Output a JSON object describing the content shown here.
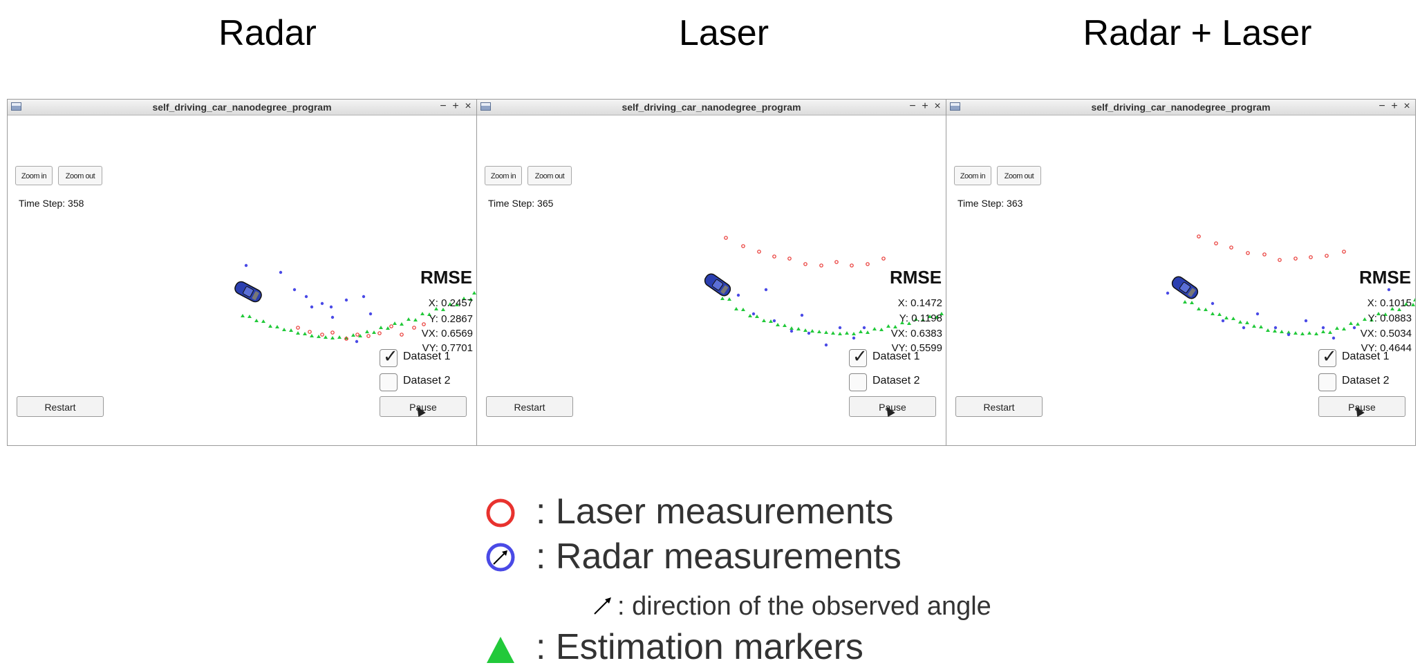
{
  "columns": [
    {
      "title": "Radar",
      "time_step": "Time Step: 358",
      "rmse": {
        "label": "RMSE",
        "x": "X: 0.2457",
        "y": "Y: 0.2867",
        "vx": "VX: 0.6569",
        "vy": "VY: 0.7701"
      }
    },
    {
      "title": "Laser",
      "time_step": "Time Step: 365",
      "rmse": {
        "label": "RMSE",
        "x": "X: 0.1472",
        "y": "Y: 0.1198",
        "vx": "VX: 0.6383",
        "vy": "VY: 0.5599"
      }
    },
    {
      "title": "Radar + Laser",
      "time_step": "Time Step: 363",
      "rmse": {
        "label": "RMSE",
        "x": "X: 0.1015",
        "y": "Y: 0.0883",
        "vx": "VX: 0.5034",
        "vy": "VY: 0.4644"
      }
    }
  ],
  "window": {
    "title": "self_driving_car_nanodegree_program",
    "minimize": "−",
    "maximize": "+",
    "close": "×",
    "zoom_in": "Zoom in",
    "zoom_out": "Zoom out",
    "dataset1": "Dataset 1",
    "dataset2": "Dataset 2",
    "dataset1_checked": true,
    "dataset2_checked": false,
    "restart": "Restart",
    "pause": "Pause",
    "check_glyph": "✓"
  },
  "legend": {
    "laser": ": Laser measurements",
    "radar": ": Radar measurements",
    "arrow": ": direction of the observed angle",
    "estimation": ": Estimation markers"
  },
  "colors": {
    "laser": "#e8322e",
    "radar": "#4a4ae6",
    "estimation": "#22c93a",
    "car": "#2b3fb0"
  },
  "icons": [
    "window-menu-icon",
    "car-icon",
    "check-icon",
    "cursor-icon",
    "arrow-icon",
    "triangle-icon",
    "circle-icon"
  ]
}
